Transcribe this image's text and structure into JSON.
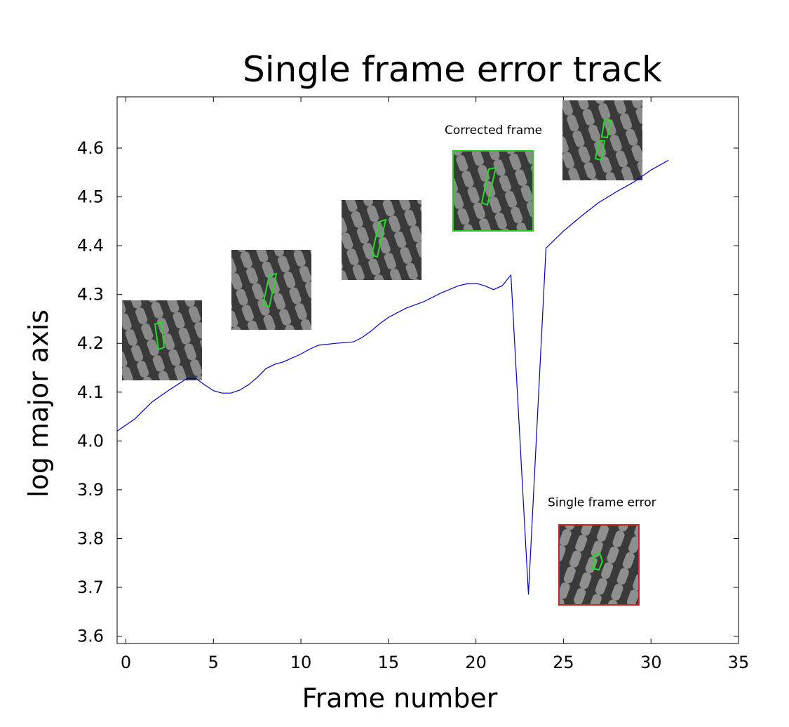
{
  "chart_data": {
    "type": "line",
    "title": "Single frame error track",
    "xlabel": "Frame number",
    "ylabel": "log major axis",
    "xlim": [
      -0.5,
      35
    ],
    "ylim": [
      3.585,
      4.705
    ],
    "xticks": [
      0,
      5,
      10,
      15,
      20,
      25,
      30,
      35
    ],
    "yticks": [
      3.6,
      3.7,
      3.8,
      3.9,
      4.0,
      4.1,
      4.2,
      4.3,
      4.4,
      4.5,
      4.6
    ],
    "ytick_labels": [
      "3.6",
      "3.7",
      "3.8",
      "3.9",
      "4.0",
      "4.1",
      "4.2",
      "4.3",
      "4.4",
      "4.5",
      "4.6"
    ],
    "grid": false,
    "series": [
      {
        "color": "#0000cc",
        "x": [
          -0.5,
          0.5,
          1.5,
          2.5,
          3.5,
          4.0,
          4.5,
          5.0,
          5.5,
          6.0,
          6.5,
          7.0,
          7.5,
          8.0,
          8.5,
          9.0,
          9.5,
          10.0,
          10.5,
          11.0,
          12.0,
          13.0,
          13.5,
          14.0,
          14.5,
          15.0,
          16.0,
          17.0,
          18.0,
          19.0,
          19.5,
          20.0,
          20.5,
          21.0,
          21.5,
          22.0,
          23.0,
          24.0,
          25.0,
          26.0,
          27.0,
          28.0,
          29.0,
          30.0,
          31.0
        ],
        "y": [
          4.02,
          4.045,
          4.08,
          4.105,
          4.128,
          4.128,
          4.115,
          4.103,
          4.098,
          4.098,
          4.104,
          4.115,
          4.13,
          4.148,
          4.157,
          4.162,
          4.17,
          4.178,
          4.188,
          4.196,
          4.2,
          4.203,
          4.212,
          4.225,
          4.24,
          4.253,
          4.272,
          4.285,
          4.303,
          4.318,
          4.322,
          4.323,
          4.318,
          4.31,
          4.318,
          4.34,
          3.685,
          4.395,
          4.43,
          4.46,
          4.488,
          4.51,
          4.53,
          4.555,
          4.575
        ]
      }
    ],
    "annotations": [
      {
        "text": "Corrected frame",
        "x": 21.0,
        "y": 4.629
      },
      {
        "text": "Single frame error",
        "x": 27.2,
        "y": 3.866
      }
    ]
  }
}
